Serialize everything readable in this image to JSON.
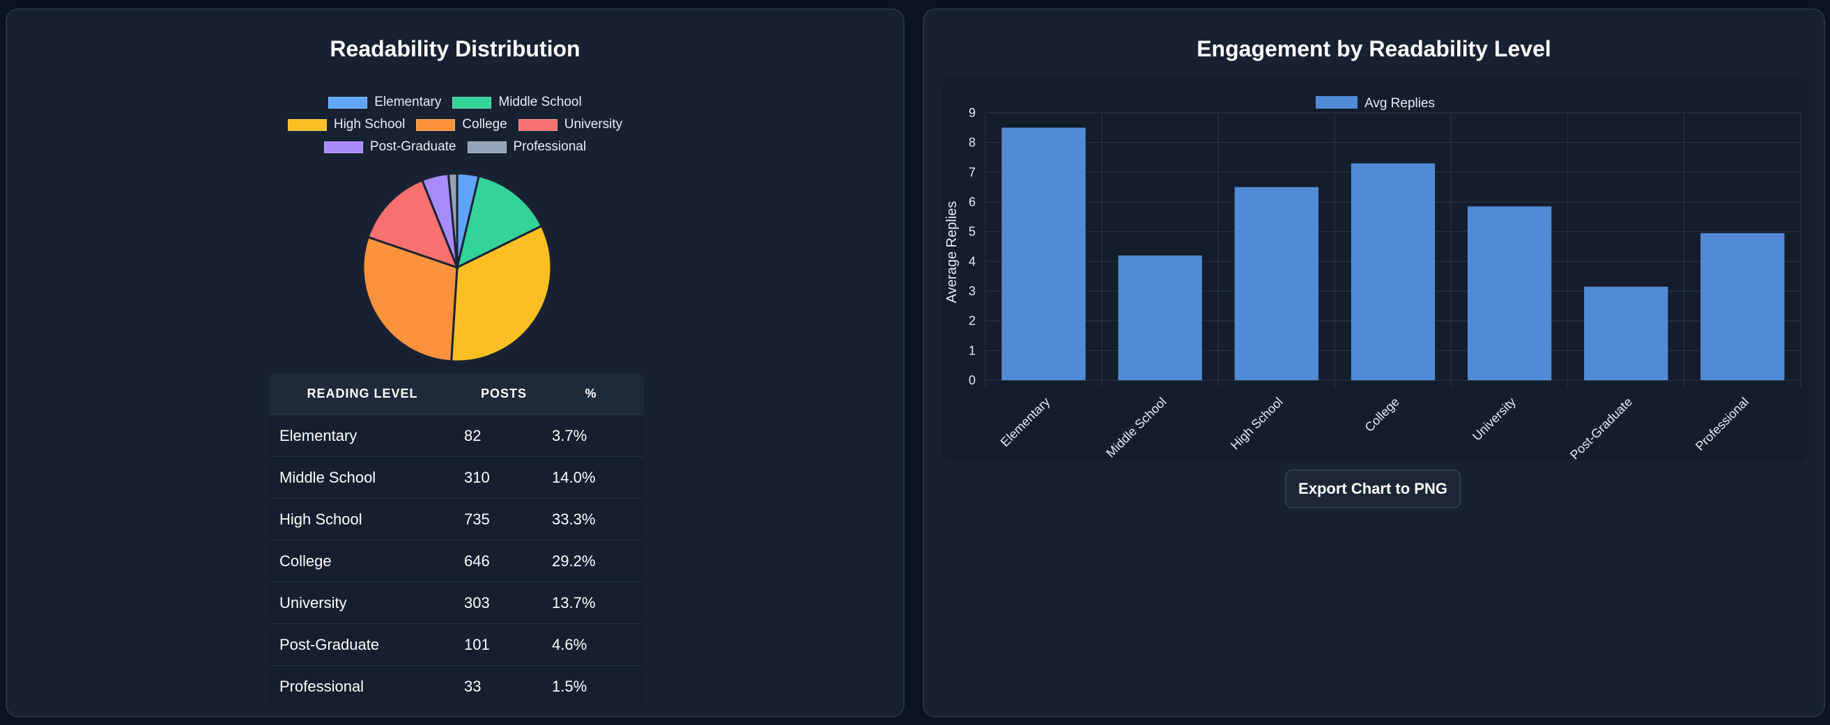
{
  "left": {
    "title": "Readability Distribution",
    "table": {
      "headers": [
        "READING LEVEL",
        "POSTS",
        "%"
      ],
      "rows": [
        [
          "Elementary",
          "82",
          "3.7%"
        ],
        [
          "Middle School",
          "310",
          "14.0%"
        ],
        [
          "High School",
          "735",
          "33.3%"
        ],
        [
          "College",
          "646",
          "29.2%"
        ],
        [
          "University",
          "303",
          "13.7%"
        ],
        [
          "Post-Graduate",
          "101",
          "4.6%"
        ],
        [
          "Professional",
          "33",
          "1.5%"
        ]
      ]
    }
  },
  "right": {
    "title": "Engagement by Readability Level",
    "export_label": "Export Chart to PNG"
  },
  "chart_data": [
    {
      "type": "pie",
      "title": "Readability Distribution",
      "legend_position": "top",
      "slices": [
        {
          "label": "Elementary",
          "value": 82,
          "color": "#60a5fa"
        },
        {
          "label": "Middle School",
          "value": 310,
          "color": "#34d399"
        },
        {
          "label": "High School",
          "value": 735,
          "color": "#fbbf24"
        },
        {
          "label": "College",
          "value": 646,
          "color": "#fb923c"
        },
        {
          "label": "University",
          "value": 303,
          "color": "#f87171"
        },
        {
          "label": "Post-Graduate",
          "value": 101,
          "color": "#a78bfa"
        },
        {
          "label": "Professional",
          "value": 33,
          "color": "#94a3b8"
        }
      ]
    },
    {
      "type": "bar",
      "title": "Engagement by Readability Level",
      "categories": [
        "Elementary",
        "Middle School",
        "High School",
        "College",
        "University",
        "Post-Graduate",
        "Professional"
      ],
      "series": [
        {
          "name": "Avg Replies",
          "values": [
            8.5,
            4.2,
            6.5,
            7.3,
            5.85,
            3.15,
            4.95
          ],
          "color": "#528bd5"
        }
      ],
      "xlabel": "",
      "ylabel": "Average Replies",
      "ylim": [
        0,
        9
      ],
      "yticks": [
        "0",
        "1",
        "2",
        "3",
        "4",
        "5",
        "6",
        "7",
        "8",
        "9"
      ],
      "grid": true,
      "legend_position": "top"
    }
  ]
}
